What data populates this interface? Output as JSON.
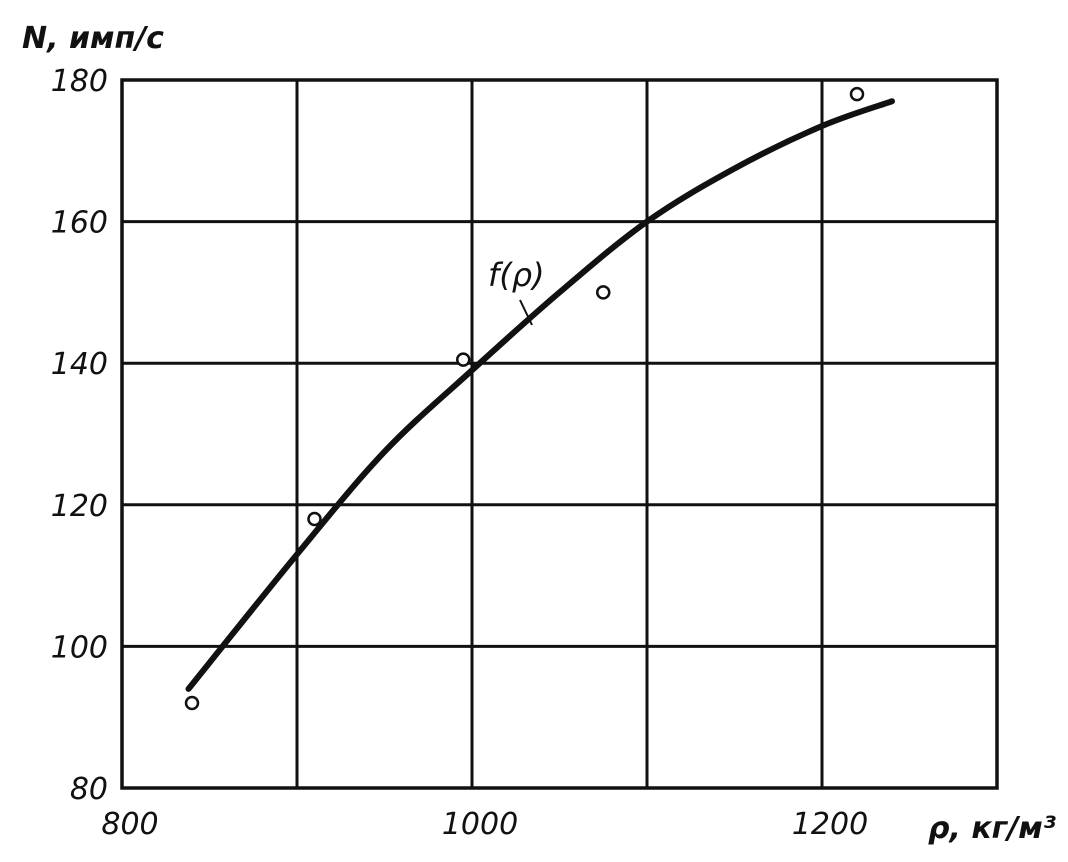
{
  "chart_data": {
    "type": "scatter",
    "xlabel": "ρ, кг/м³",
    "ylabel": "N, имп/с",
    "xlim": [
      800,
      1300
    ],
    "ylim": [
      80,
      180
    ],
    "x_ticks": [
      800,
      1000,
      1200
    ],
    "x_tick_labels": [
      "800",
      "1000",
      "1200"
    ],
    "x_gridlines": [
      900,
      1000,
      1100,
      1200
    ],
    "y_ticks": [
      80,
      100,
      120,
      140,
      160,
      180
    ],
    "y_tick_labels": [
      "80",
      "100",
      "120",
      "140",
      "160",
      "180"
    ],
    "grid": true,
    "points": [
      {
        "x": 840,
        "y": 92
      },
      {
        "x": 910,
        "y": 118
      },
      {
        "x": 995,
        "y": 140.5
      },
      {
        "x": 1075,
        "y": 150
      },
      {
        "x": 1220,
        "y": 178
      }
    ],
    "fit_curve": {
      "label": "f(ρ)",
      "x": [
        838,
        900,
        950,
        1000,
        1050,
        1100,
        1150,
        1200,
        1240
      ],
      "y": [
        94,
        113,
        127.5,
        139,
        150,
        160,
        167.5,
        173.5,
        177
      ]
    },
    "colors": {
      "ink": "#111111",
      "background": "#ffffff"
    }
  }
}
